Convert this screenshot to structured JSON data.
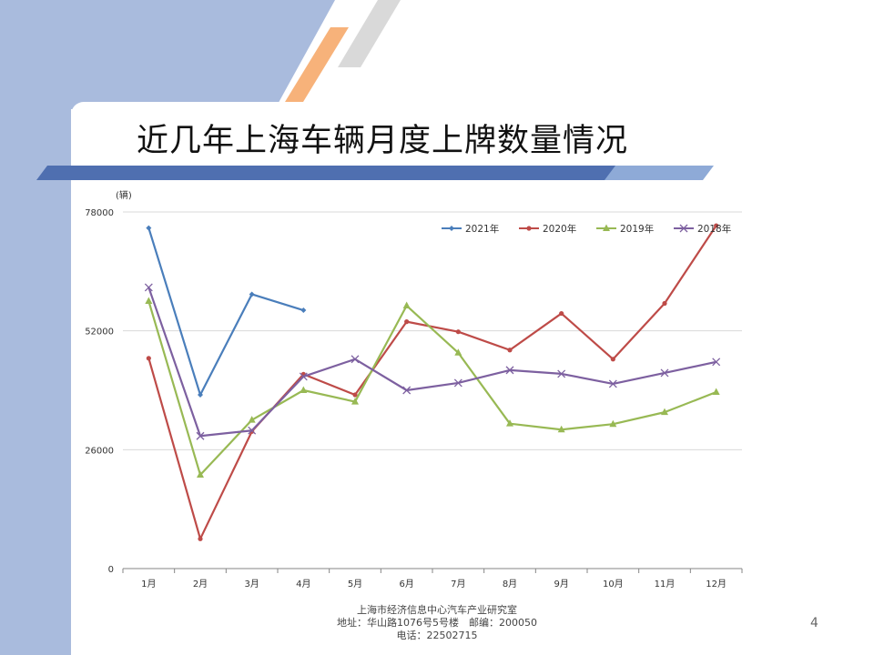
{
  "slide": {
    "title": "近几年上海车辆月度上牌数量情况",
    "page_number": "4",
    "footer": {
      "line1": "上海市经济信息中心汽车产业研究室",
      "line2": "地址：华山路1076号5号楼　邮编：200050",
      "line3": "电话：22502715"
    },
    "colors": {
      "left_band": "#a9bbdd",
      "accent_orange": "#f7b27a",
      "accent_gray": "#d9d9d9",
      "underline_blue": "#4f6fb0"
    }
  },
  "chart_data": {
    "type": "line",
    "ylabel": "(辆)",
    "ylim": [
      0,
      78000
    ],
    "yticks": [
      0,
      26000,
      52000,
      78000
    ],
    "ytick_labels": [
      "0",
      "26000",
      "52000",
      "78000"
    ],
    "categories": [
      "1月",
      "2月",
      "3月",
      "4月",
      "5月",
      "6月",
      "7月",
      "8月",
      "9月",
      "10月",
      "11月",
      "12月"
    ],
    "grid": true,
    "legend_position": "top-right",
    "series": [
      {
        "name": "2021年",
        "color": "#4a7ebb",
        "marker": "diamond",
        "values": [
          74500,
          38000,
          60000,
          56500,
          null,
          null,
          null,
          null,
          null,
          null,
          null,
          null
        ]
      },
      {
        "name": "2020年",
        "color": "#be4b48",
        "marker": "circle",
        "values": [
          46000,
          6500,
          30000,
          42500,
          38000,
          54000,
          51800,
          47800,
          55800,
          45800,
          58000,
          75000
        ]
      },
      {
        "name": "2019年",
        "color": "#98b954",
        "marker": "triangle",
        "values": [
          58500,
          20500,
          32500,
          39000,
          36500,
          57500,
          47200,
          31700,
          30400,
          31600,
          34200,
          38600
        ]
      },
      {
        "name": "2018年",
        "color": "#7d60a0",
        "marker": "x",
        "values": [
          61500,
          29000,
          30200,
          42000,
          45800,
          39000,
          40600,
          43400,
          42600,
          40400,
          42800,
          45200
        ]
      }
    ]
  }
}
